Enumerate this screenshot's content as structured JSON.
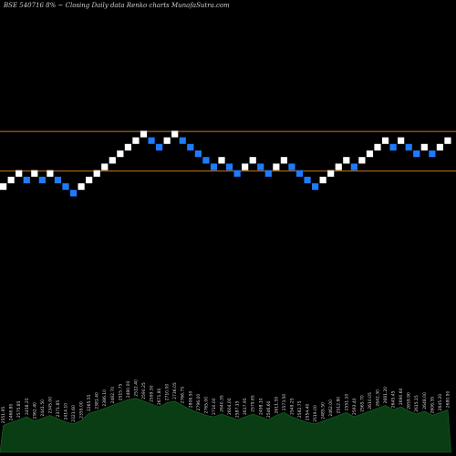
{
  "chart_data": {
    "type": "renko",
    "title": "BSE 540716  8% ~  Closing Daily data  Renko  charts MunafaSutra.com",
    "brick_colors": {
      "up": "#ffffff",
      "down": "#1e7bff"
    },
    "reference_line_color": "#c8781e",
    "volume_fill": "#0a3d14",
    "volume_stroke": "#1a6b28",
    "bricks": [
      {
        "dir": "up",
        "level": 0
      },
      {
        "dir": "up",
        "level": 1
      },
      {
        "dir": "up",
        "level": 2
      },
      {
        "dir": "down",
        "level": 1
      },
      {
        "dir": "up",
        "level": 2
      },
      {
        "dir": "down",
        "level": 1
      },
      {
        "dir": "up",
        "level": 2
      },
      {
        "dir": "down",
        "level": 1
      },
      {
        "dir": "down",
        "level": 0
      },
      {
        "dir": "down",
        "level": -1
      },
      {
        "dir": "up",
        "level": 0
      },
      {
        "dir": "up",
        "level": 1
      },
      {
        "dir": "up",
        "level": 2
      },
      {
        "dir": "up",
        "level": 3
      },
      {
        "dir": "up",
        "level": 4
      },
      {
        "dir": "up",
        "level": 5
      },
      {
        "dir": "up",
        "level": 6
      },
      {
        "dir": "up",
        "level": 7
      },
      {
        "dir": "up",
        "level": 8
      },
      {
        "dir": "down",
        "level": 7
      },
      {
        "dir": "down",
        "level": 6
      },
      {
        "dir": "up",
        "level": 7
      },
      {
        "dir": "up",
        "level": 8
      },
      {
        "dir": "down",
        "level": 7
      },
      {
        "dir": "down",
        "level": 6
      },
      {
        "dir": "down",
        "level": 5
      },
      {
        "dir": "down",
        "level": 4
      },
      {
        "dir": "down",
        "level": 3
      },
      {
        "dir": "up",
        "level": 4
      },
      {
        "dir": "down",
        "level": 3
      },
      {
        "dir": "down",
        "level": 2
      },
      {
        "dir": "up",
        "level": 3
      },
      {
        "dir": "up",
        "level": 4
      },
      {
        "dir": "down",
        "level": 3
      },
      {
        "dir": "down",
        "level": 2
      },
      {
        "dir": "up",
        "level": 3
      },
      {
        "dir": "up",
        "level": 4
      },
      {
        "dir": "down",
        "level": 3
      },
      {
        "dir": "down",
        "level": 2
      },
      {
        "dir": "down",
        "level": 1
      },
      {
        "dir": "down",
        "level": 0
      },
      {
        "dir": "up",
        "level": 1
      },
      {
        "dir": "up",
        "level": 2
      },
      {
        "dir": "up",
        "level": 3
      },
      {
        "dir": "up",
        "level": 4
      },
      {
        "dir": "down",
        "level": 3
      },
      {
        "dir": "up",
        "level": 4
      },
      {
        "dir": "up",
        "level": 5
      },
      {
        "dir": "up",
        "level": 6
      },
      {
        "dir": "up",
        "level": 7
      },
      {
        "dir": "down",
        "level": 6
      },
      {
        "dir": "up",
        "level": 7
      },
      {
        "dir": "down",
        "level": 6
      },
      {
        "dir": "down",
        "level": 5
      },
      {
        "dir": "up",
        "level": 6
      },
      {
        "dir": "down",
        "level": 5
      },
      {
        "dir": "up",
        "level": 6
      },
      {
        "dir": "up",
        "level": 7
      }
    ],
    "reference_lines": [
      {
        "level": 8.4
      },
      {
        "level": 2.4
      }
    ],
    "volume": [
      38,
      42,
      46,
      50,
      44,
      48,
      52,
      47,
      43,
      40,
      45,
      55,
      58,
      62,
      66,
      70,
      74,
      76,
      72,
      68,
      64,
      70,
      72,
      66,
      60,
      56,
      52,
      50,
      54,
      50,
      46,
      50,
      54,
      50,
      46,
      52,
      56,
      50,
      46,
      42,
      40,
      44,
      48,
      52,
      56,
      50,
      54,
      58,
      62,
      66,
      60,
      64,
      58,
      54,
      58,
      52,
      56,
      60
    ],
    "date_labels": [
      "2551.95",
      "2466.80",
      "2575.85",
      "2458.25",
      "2362.40",
      "2441.50",
      "2345.00",
      "2371.85",
      "2414.10",
      "2321.60",
      "2355.00",
      "2265.55",
      "2381.40",
      "2386.10",
      "2482.70",
      "2515.75",
      "2480.00",
      "2512.40",
      "2590.25",
      "2599.50",
      "2671.80",
      "2710.00",
      "2736.05",
      "2766.75",
      "2806.50",
      "2796.00",
      "2765.00",
      "2710.00",
      "2640.35",
      "2604.00",
      "2587.15",
      "2617.95",
      "2579.65",
      "2498.10",
      "2546.60",
      "2611.55",
      "2573.50",
      "2549.25",
      "2582.75",
      "2554.40",
      "2519.00",
      "2485.50",
      "2462.00",
      "2512.80",
      "2551.10",
      "2593.40",
      "2565.70",
      "2610.05",
      "2642.30",
      "2681.20",
      "2645.45",
      "2690.60",
      "2659.90",
      "2615.15",
      "2648.00",
      "2606.35",
      "2645.20",
      "2680.90"
    ]
  }
}
